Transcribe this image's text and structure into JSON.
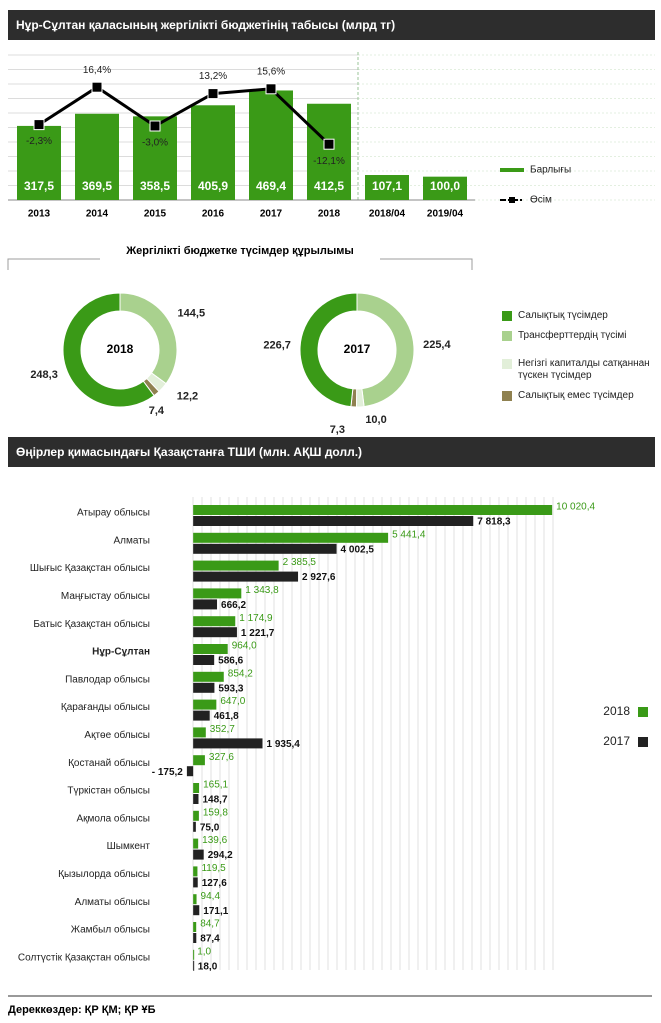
{
  "chart_data": [
    {
      "type": "combo",
      "title": "Нұр-Сұлтан  қаласының жергілікті бюджетінің табысы (млрд тг)",
      "categories": [
        "2013",
        "2014",
        "2015",
        "2016",
        "2017",
        "2018",
        "2018/04",
        "2019/04"
      ],
      "series": [
        {
          "name": "Барлығы",
          "type": "bar",
          "color": "#3a9a17",
          "values": [
            317.5,
            369.5,
            358.5,
            405.9,
            469.4,
            412.5,
            107.1,
            100.0
          ],
          "value_labels": [
            "317,5",
            "369,5",
            "358,5",
            "405,9",
            "469,4",
            "412,5",
            "107,1",
            "100,0"
          ]
        },
        {
          "name": "Өсім",
          "type": "line",
          "axis": "y2",
          "color": "#000000",
          "values": [
            -2.3,
            16.4,
            -3.0,
            13.2,
            15.6,
            -12.1,
            null,
            null
          ],
          "value_labels": [
            "-2,3%",
            "16,4%",
            "-3,0%",
            "13,2%",
            "15,6%",
            "-12,1%",
            null,
            null
          ]
        }
      ],
      "ylim": [
        0,
        600
      ],
      "y2lim": [
        -40,
        30
      ]
    },
    {
      "type": "donut",
      "title": "Жергілікті бюджетке түсімдер құрылымы",
      "categories": [
        "Салықтық түсімдер",
        "Трансферттердің түсімі",
        "Негізгі капиталды сатқаннан түскен түсімдер",
        "Салықтық емес түсімдер"
      ],
      "colors": [
        "#3a9a17",
        "#a9d18e",
        "#e2efd9",
        "#8f8150"
      ],
      "series": [
        {
          "name": "2018",
          "values": [
            248.3,
            144.5,
            12.2,
            7.4
          ],
          "value_labels": [
            "248,3",
            "144,5",
            "12,2",
            "7,4"
          ]
        },
        {
          "name": "2017",
          "values": [
            226.7,
            225.4,
            10.0,
            7.3
          ],
          "value_labels": [
            "226,7",
            "225,4",
            "10,0",
            "7,3"
          ]
        }
      ]
    },
    {
      "type": "hbar",
      "title": "Өңірлер қимасындағы Қазақстанға ТШИ (млн. АҚШ долл.)",
      "categories": [
        "Атырау облысы",
        "Алматы",
        "Шығыс Қазақстан облысы",
        "Маңғыстау облысы",
        "Батыс Қазақстан облысы",
        "Нұр-Сұлтан",
        "Павлодар облысы",
        "Қарағанды облысы",
        "Ақтөе облысы",
        "Қостанай облысы",
        "Түркістан облысы",
        "Ақмола облысы",
        "Шымкент",
        "Қызылорда облысы",
        "Алматы облысы",
        "Жамбыл облысы",
        "Солтүстік Қазақстан облысы"
      ],
      "series": [
        {
          "name": "2018",
          "color": "#3a9a17",
          "values": [
            10020.4,
            5441.4,
            2385.5,
            1343.8,
            1174.9,
            964.0,
            854.2,
            647.0,
            352.7,
            327.6,
            165.1,
            159.8,
            139.6,
            119.5,
            94.4,
            84.7,
            1.0
          ],
          "value_labels": [
            "10 020,4",
            "5 441,4",
            "2 385,5",
            "1 343,8",
            "1 174,9",
            "964,0",
            "854,2",
            "647,0",
            "352,7",
            "327,6",
            "165,1",
            "159,8",
            "139,6",
            "119,5",
            "94,4",
            "84,7",
            "1,0"
          ]
        },
        {
          "name": "2017",
          "color": "#222222",
          "values": [
            7818.3,
            4002.5,
            2927.6,
            666.2,
            1221.7,
            586.6,
            593.3,
            461.8,
            1935.4,
            -175.2,
            148.7,
            75.0,
            294.2,
            127.6,
            171.1,
            87.4,
            18.0
          ],
          "value_labels": [
            "7 818,3",
            "4 002,5",
            "2 927,6",
            "666,2",
            "1 221,7",
            "586,6",
            "593,3",
            "461,8",
            "1 935,4",
            "- 175,2",
            "148,7",
            "75,0",
            "294,2",
            "127,6",
            "171,1",
            "87,4",
            "18,0"
          ]
        }
      ],
      "xlim": [
        -200,
        10100
      ]
    }
  ],
  "source": "Дереккөздер: ҚР ҚМ; ҚР ҰБ"
}
